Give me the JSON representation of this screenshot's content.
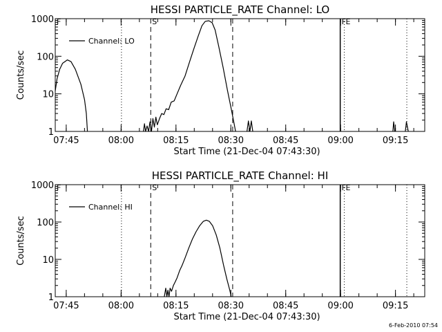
{
  "chart_data": [
    {
      "type": "line",
      "title": "HESSI PARTICLE_RATE Channel: LO",
      "xlabel": "Start Time (21-Dec-04 07:43:30)",
      "ylabel": "Counts/sec",
      "yscale": "log",
      "ylim": [
        1,
        1000
      ],
      "xlim_minutes": [
        -1.5,
        99.5
      ],
      "x_ticks": [
        {
          "t": 1.5,
          "label": "07:45"
        },
        {
          "t": 16.5,
          "label": "08:00"
        },
        {
          "t": 31.5,
          "label": "08:15"
        },
        {
          "t": 46.5,
          "label": "08:30"
        },
        {
          "t": 61.5,
          "label": "08:45"
        },
        {
          "t": 76.5,
          "label": "09:00"
        },
        {
          "t": 91.5,
          "label": "09:15"
        }
      ],
      "y_ticks": [
        {
          "v": 1,
          "label": "1"
        },
        {
          "v": 10,
          "label": "10"
        },
        {
          "v": 100,
          "label": "100"
        },
        {
          "v": 1000,
          "label": "1000"
        }
      ],
      "legend": {
        "label": "Channel: LO",
        "position": "top-left"
      },
      "markers": [
        {
          "t": -1.5,
          "style": "dotted",
          "label": "F"
        },
        {
          "t": 16.6,
          "style": "dotted",
          "label": ""
        },
        {
          "t": 24.6,
          "style": "dashed",
          "label": "S"
        },
        {
          "t": 47.0,
          "style": "dashed",
          "label": ""
        },
        {
          "t": 76.4,
          "style": "solid",
          "label": "F"
        },
        {
          "t": 77.5,
          "style": "dotted",
          "label": "E"
        },
        {
          "t": 94.6,
          "style": "dotted",
          "label": ""
        }
      ],
      "segments": [
        [
          [
            -1.5,
            12
          ],
          [
            -1.0,
            25
          ],
          [
            -0.3,
            45
          ],
          [
            0.5,
            65
          ],
          [
            1.8,
            80
          ],
          [
            2.8,
            72
          ],
          [
            4.0,
            45
          ],
          [
            5.5,
            18
          ],
          [
            6.5,
            7
          ],
          [
            7.0,
            3
          ],
          [
            7.3,
            1
          ]
        ],
        [
          [
            22.6,
            1
          ],
          [
            22.9,
            1.6
          ],
          [
            23.2,
            1
          ],
          [
            23.6,
            1.4
          ],
          [
            24.0,
            1
          ],
          [
            24.4,
            1.8
          ],
          [
            24.8,
            1
          ],
          [
            25.2,
            2.2
          ],
          [
            25.6,
            1.3
          ],
          [
            26.0,
            2.4
          ],
          [
            26.4,
            1.5
          ],
          [
            27.0,
            2.2
          ],
          [
            27.6,
            3.0
          ],
          [
            28.2,
            2.8
          ],
          [
            28.8,
            4
          ],
          [
            29.5,
            3.8
          ],
          [
            30.2,
            6
          ],
          [
            31.0,
            6.5
          ],
          [
            31.8,
            10
          ],
          [
            32.8,
            17
          ],
          [
            34.0,
            30
          ],
          [
            35.2,
            70
          ],
          [
            36.4,
            160
          ],
          [
            37.6,
            350
          ],
          [
            38.6,
            650
          ],
          [
            39.5,
            850
          ],
          [
            40.5,
            880
          ],
          [
            41.4,
            780
          ],
          [
            42.2,
            500
          ],
          [
            43.2,
            180
          ],
          [
            44.4,
            50
          ],
          [
            45.6,
            12
          ],
          [
            46.6,
            4
          ],
          [
            47.4,
            1.6
          ],
          [
            47.8,
            1
          ]
        ],
        [
          [
            50.9,
            1
          ],
          [
            51.3,
            1.9
          ],
          [
            51.7,
            1
          ],
          [
            52.1,
            1.9
          ],
          [
            52.5,
            1
          ]
        ],
        [
          [
            90.8,
            1
          ],
          [
            91.0,
            1.8
          ],
          [
            91.3,
            1
          ]
        ],
        [
          [
            94.2,
            1
          ],
          [
            94.5,
            1.8
          ],
          [
            95.0,
            1
          ]
        ]
      ]
    },
    {
      "type": "line",
      "title": "HESSI PARTICLE_RATE Channel: HI",
      "xlabel": "Start Time (21-Dec-04 07:43:30)",
      "ylabel": "Counts/sec",
      "yscale": "log",
      "ylim": [
        1,
        1000
      ],
      "xlim_minutes": [
        -1.5,
        99.5
      ],
      "x_ticks": [
        {
          "t": 1.5,
          "label": "07:45"
        },
        {
          "t": 16.5,
          "label": "08:00"
        },
        {
          "t": 31.5,
          "label": "08:15"
        },
        {
          "t": 46.5,
          "label": "08:30"
        },
        {
          "t": 61.5,
          "label": "08:45"
        },
        {
          "t": 76.5,
          "label": "09:00"
        },
        {
          "t": 91.5,
          "label": "09:15"
        }
      ],
      "y_ticks": [
        {
          "v": 1,
          "label": "1"
        },
        {
          "v": 10,
          "label": "10"
        },
        {
          "v": 100,
          "label": "100"
        },
        {
          "v": 1000,
          "label": "1000"
        }
      ],
      "legend": {
        "label": "Channel: HI",
        "position": "top-left"
      },
      "markers": [
        {
          "t": -1.5,
          "style": "dotted",
          "label": "F"
        },
        {
          "t": 16.6,
          "style": "dotted",
          "label": ""
        },
        {
          "t": 24.6,
          "style": "dashed",
          "label": "S"
        },
        {
          "t": 47.0,
          "style": "dashed",
          "label": ""
        },
        {
          "t": 76.4,
          "style": "solid",
          "label": "F"
        },
        {
          "t": 77.5,
          "style": "dotted",
          "label": "E"
        },
        {
          "t": 94.6,
          "style": "dotted",
          "label": ""
        }
      ],
      "segments": [
        [
          [
            28.3,
            1
          ],
          [
            28.7,
            1.7
          ],
          [
            29.0,
            1
          ],
          [
            29.3,
            1.5
          ],
          [
            29.6,
            1
          ],
          [
            29.9,
            1.7
          ],
          [
            30.3,
            1.4
          ],
          [
            30.8,
            2.0
          ],
          [
            31.3,
            2.5
          ],
          [
            31.8,
            3.2
          ],
          [
            32.5,
            5
          ],
          [
            33.2,
            7
          ],
          [
            34.0,
            11
          ],
          [
            35.0,
            20
          ],
          [
            36.0,
            35
          ],
          [
            37.0,
            55
          ],
          [
            38.0,
            80
          ],
          [
            39.0,
            105
          ],
          [
            39.8,
            112
          ],
          [
            40.6,
            105
          ],
          [
            41.5,
            80
          ],
          [
            42.5,
            45
          ],
          [
            43.5,
            20
          ],
          [
            44.5,
            7
          ],
          [
            45.4,
            3
          ],
          [
            46.2,
            1.5
          ],
          [
            46.6,
            1
          ]
        ]
      ]
    }
  ],
  "footer": {
    "timestamp": "6-Feb-2010 07:54"
  }
}
